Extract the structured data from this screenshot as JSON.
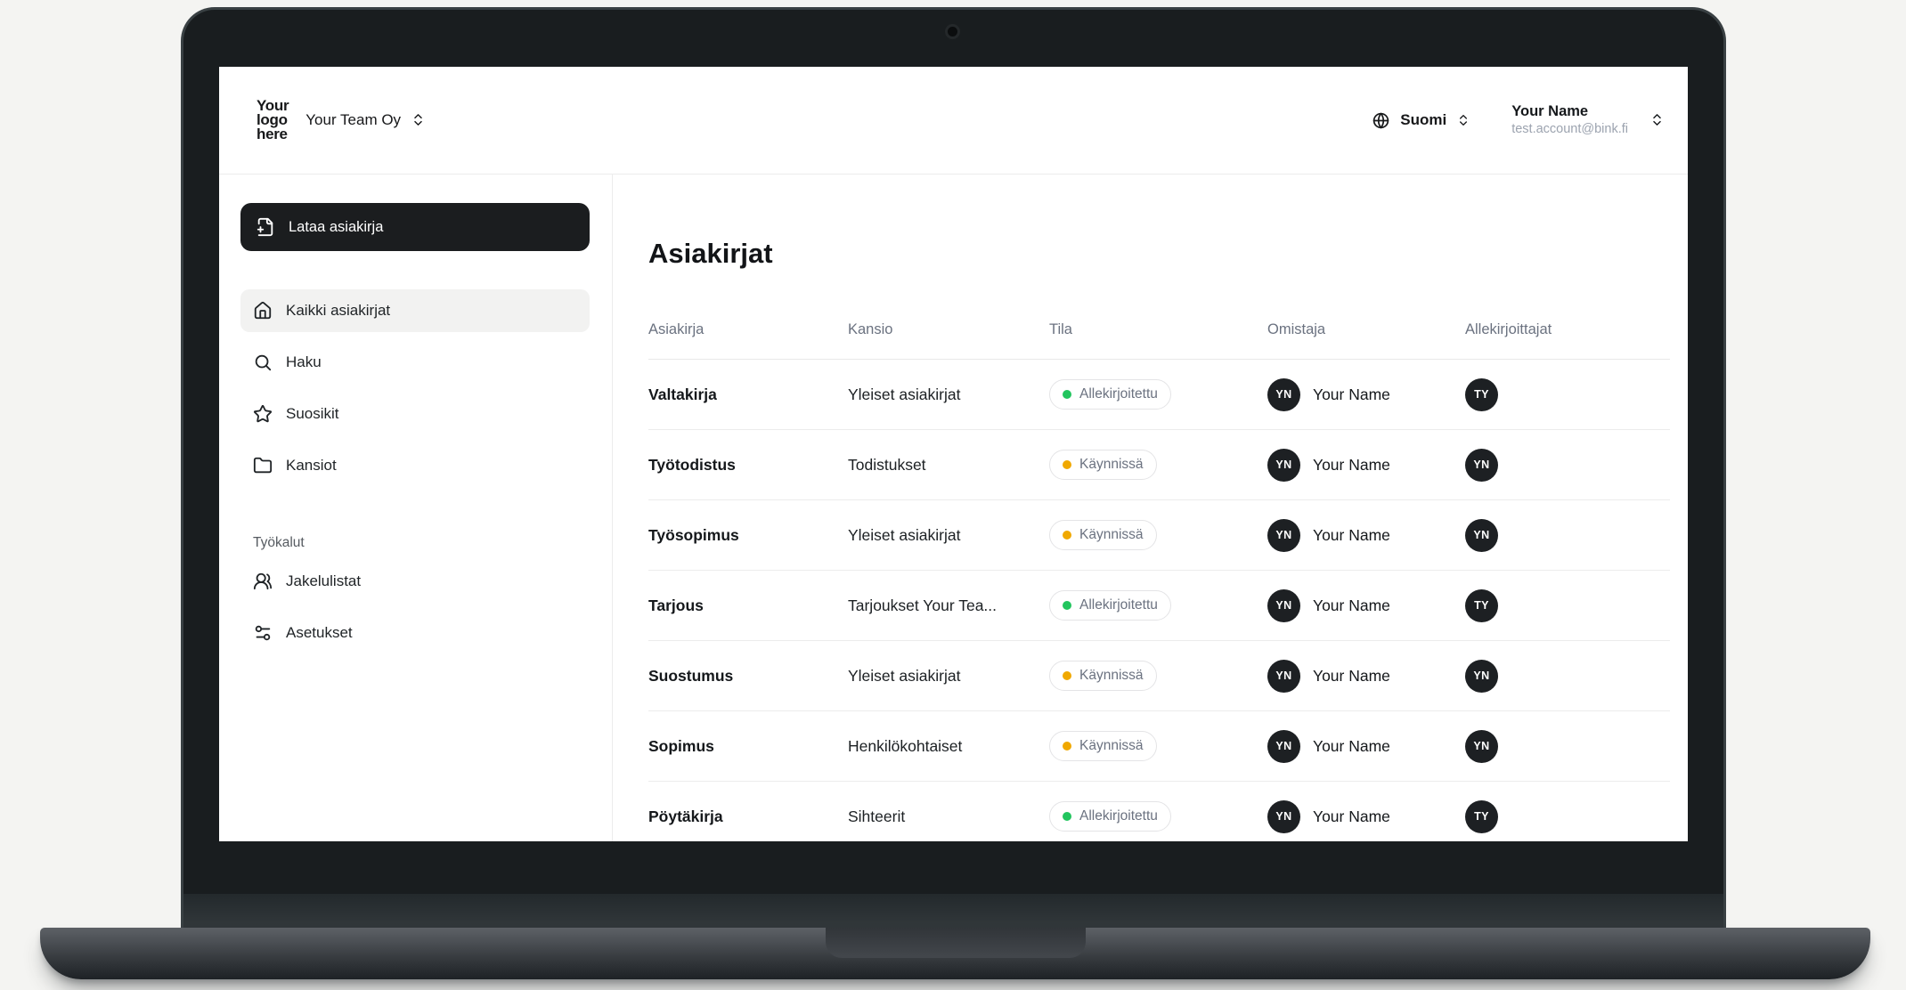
{
  "header": {
    "logo_lines": [
      "Your",
      "logo",
      "here"
    ],
    "team_switcher": {
      "label": "Your Team Oy",
      "icon": "chevron-up-down-icon"
    },
    "language_switcher": {
      "label": "Suomi",
      "icon": "globe-icon",
      "chevron_icon": "chevron-up-down-icon"
    },
    "account": {
      "name": "Your Name",
      "email": "test.account@bink.fi",
      "chevron_icon": "chevron-up-down-icon"
    }
  },
  "sidebar": {
    "upload_button": {
      "label": "Lataa asiakirja",
      "icon": "file-plus-icon"
    },
    "items": [
      {
        "label": "Kaikki asiakirjat",
        "icon": "home-icon",
        "active": true
      },
      {
        "label": "Haku",
        "icon": "search-icon",
        "active": false
      },
      {
        "label": "Suosikit",
        "icon": "star-icon",
        "active": false
      },
      {
        "label": "Kansiot",
        "icon": "folder-icon",
        "active": false
      }
    ],
    "section_label": "Työkalut",
    "tool_items": [
      {
        "label": "Jakelulistat",
        "icon": "users-icon",
        "active": false
      },
      {
        "label": "Asetukset",
        "icon": "sliders-icon",
        "active": false
      }
    ]
  },
  "main": {
    "title": "Asiakirjat",
    "table": {
      "columns": [
        "Asiakirja",
        "Kansio",
        "Tila",
        "Omistaja",
        "Allekirjoittajat"
      ],
      "status_colors": {
        "signed": "#22c55e",
        "in_progress": "#f0a800"
      },
      "rows": [
        {
          "document": "Valtakirja",
          "folder": "Yleiset asiakirjat",
          "status": "Allekirjoitettu",
          "status_type": "signed",
          "owner_initials": "YN",
          "owner_name": "Your Name",
          "signer_initials": "TY"
        },
        {
          "document": "Työtodistus",
          "folder": "Todistukset",
          "status": "Käynnissä",
          "status_type": "in_progress",
          "owner_initials": "YN",
          "owner_name": "Your Name",
          "signer_initials": "YN"
        },
        {
          "document": "Työsopimus",
          "folder": "Yleiset asiakirjat",
          "status": "Käynnissä",
          "status_type": "in_progress",
          "owner_initials": "YN",
          "owner_name": "Your Name",
          "signer_initials": "YN"
        },
        {
          "document": "Tarjous",
          "folder": "Tarjoukset Your Tea...",
          "status": "Allekirjoitettu",
          "status_type": "signed",
          "owner_initials": "YN",
          "owner_name": "Your Name",
          "signer_initials": "TY"
        },
        {
          "document": "Suostumus",
          "folder": "Yleiset asiakirjat",
          "status": "Käynnissä",
          "status_type": "in_progress",
          "owner_initials": "YN",
          "owner_name": "Your Name",
          "signer_initials": "YN"
        },
        {
          "document": "Sopimus",
          "folder": "Henkilökohtaiset",
          "status": "Käynnissä",
          "status_type": "in_progress",
          "owner_initials": "YN",
          "owner_name": "Your Name",
          "signer_initials": "YN"
        },
        {
          "document": "Pöytäkirja",
          "folder": "Sihteerit",
          "status": "Allekirjoitettu",
          "status_type": "signed",
          "owner_initials": "YN",
          "owner_name": "Your Name",
          "signer_initials": "TY"
        }
      ]
    }
  }
}
